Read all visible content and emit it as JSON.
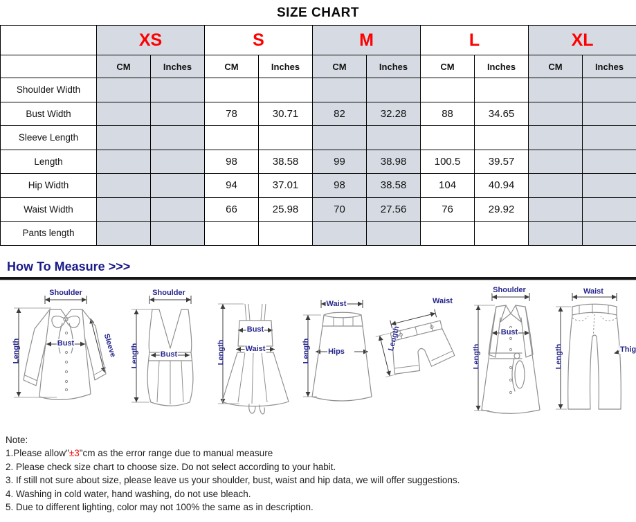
{
  "title": "SIZE CHART",
  "colors": {
    "accent_red": "#fe0000",
    "heading_navy": "#1b1b8a",
    "diagram_label_navy": "#26268c",
    "shaded_column": "#d6dbe3",
    "table_border": "#000000"
  },
  "table": {
    "sizes": [
      "XS",
      "S",
      "M",
      "L",
      "XL"
    ],
    "unit_headers": [
      "CM",
      "Inches"
    ],
    "rows": [
      {
        "label": "Shoulder Width",
        "values": [
          "",
          "",
          "",
          "",
          "",
          "",
          "",
          "",
          "",
          ""
        ]
      },
      {
        "label": "Bust Width",
        "values": [
          "",
          "",
          "78",
          "30.71",
          "82",
          "32.28",
          "88",
          "34.65",
          "",
          ""
        ]
      },
      {
        "label": "Sleeve Length",
        "values": [
          "",
          "",
          "",
          "",
          "",
          "",
          "",
          "",
          "",
          ""
        ]
      },
      {
        "label": "Length",
        "values": [
          "",
          "",
          "98",
          "38.58",
          "99",
          "38.98",
          "100.5",
          "39.57",
          "",
          ""
        ]
      },
      {
        "label": "Hip Width",
        "values": [
          "",
          "",
          "94",
          "37.01",
          "98",
          "38.58",
          "104",
          "40.94",
          "",
          ""
        ]
      },
      {
        "label": "Waist Width",
        "values": [
          "",
          "",
          "66",
          "25.98",
          "70",
          "27.56",
          "76",
          "29.92",
          "",
          ""
        ]
      },
      {
        "label": "Pants length",
        "values": [
          "",
          "",
          "",
          "",
          "",
          "",
          "",
          "",
          "",
          ""
        ]
      }
    ]
  },
  "measure": {
    "heading": "How To Measure >>>",
    "diagrams": [
      {
        "name": "blouse",
        "labels": {
          "shoulder": "Shoulder",
          "length": "Length",
          "bust": "Bust",
          "sleeve": "Sleeve"
        }
      },
      {
        "name": "vest",
        "labels": {
          "shoulder": "Shoulder",
          "length": "Length",
          "bust": "Bust"
        }
      },
      {
        "name": "dress",
        "labels": {
          "bust": "Bust",
          "waist": "Waist",
          "length": "Length"
        }
      },
      {
        "name": "skirt",
        "labels": {
          "waist": "Waist",
          "hips": "Hips",
          "length": "Length"
        }
      },
      {
        "name": "shorts",
        "labels": {
          "waist": "Waist",
          "length": "Length"
        }
      },
      {
        "name": "coat",
        "labels": {
          "shoulder": "Shoulder",
          "bust": "Bust",
          "length": "Length"
        }
      },
      {
        "name": "jeans",
        "labels": {
          "waist": "Waist",
          "thigh": "Thigh",
          "length": "Length"
        }
      }
    ]
  },
  "notes": {
    "heading": "Note:",
    "items": [
      [
        {
          "t": "1.Please allow\""
        },
        {
          "t": "±3",
          "red": true
        },
        {
          "t": "\"cm as the error range due to manual measure"
        }
      ],
      [
        {
          "t": "2. Please check size chart to choose size. Do not select according to your habit."
        }
      ],
      [
        {
          "t": "3. If still not sure about size, please leave us your shoulder, bust, waist and hip data, we will offer suggestions."
        }
      ],
      [
        {
          "t": "4. Washing in cold water, hand washing, do not use bleach."
        }
      ],
      [
        {
          "t": "5. Due to different lighting, color may not 100% the same as in description."
        }
      ]
    ]
  }
}
